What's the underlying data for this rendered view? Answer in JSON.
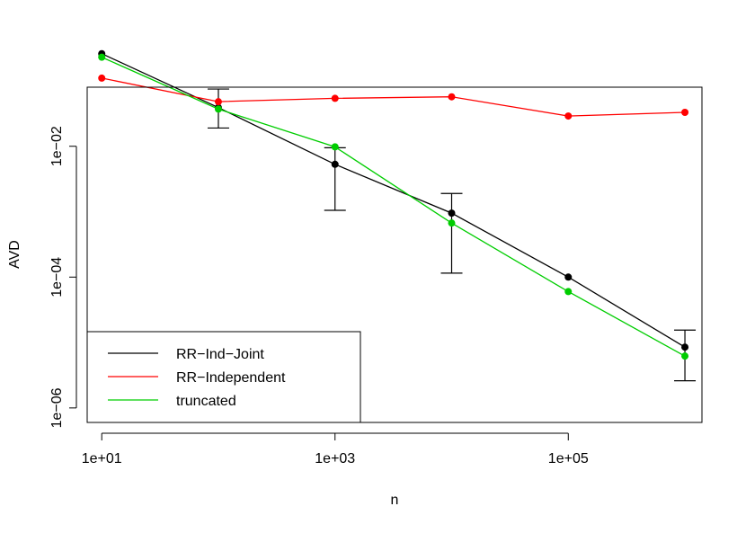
{
  "chart_data": {
    "type": "line",
    "xlabel": "n",
    "ylabel": "AVD",
    "x_scale": "log",
    "y_scale": "log",
    "xlim": [
      7.5,
      1400000.0
    ],
    "ylim": [
      6e-07,
      0.08
    ],
    "x_ticks": [
      {
        "value": 10,
        "label": "1e+01"
      },
      {
        "value": 1000,
        "label": "1e+03"
      },
      {
        "value": 100000,
        "label": "1e+05"
      }
    ],
    "y_ticks": [
      {
        "value": 1e-06,
        "label": "1e−06"
      },
      {
        "value": 0.0001,
        "label": "1e−04"
      },
      {
        "value": 0.01,
        "label": "1e−02"
      }
    ],
    "grid": false,
    "legend_position": "bottom-left",
    "x": [
      10,
      100,
      1000,
      10000,
      100000,
      1000000
    ],
    "series": [
      {
        "name": "RR−Ind−Joint",
        "color": "#000000",
        "values": [
          0.26,
          0.039,
          0.0053,
          0.00095,
          0.0001,
          8.5e-06
        ],
        "errors": [
          null,
          {
            "low": 0.019,
            "high": 0.075
          },
          {
            "low": 0.00105,
            "high": 0.0095
          },
          {
            "low": 0.000115,
            "high": 0.0019
          },
          null,
          {
            "low": 2.6e-06,
            "high": 1.55e-05
          }
        ]
      },
      {
        "name": "RR−Independent",
        "color": "#ff0000",
        "values": [
          0.11,
          0.048,
          0.054,
          0.057,
          0.029,
          0.033
        ]
      },
      {
        "name": "truncated",
        "color": "#00cd00",
        "values": [
          0.23,
          0.037,
          0.0098,
          0.00067,
          6e-05,
          6.2e-06
        ]
      }
    ]
  }
}
